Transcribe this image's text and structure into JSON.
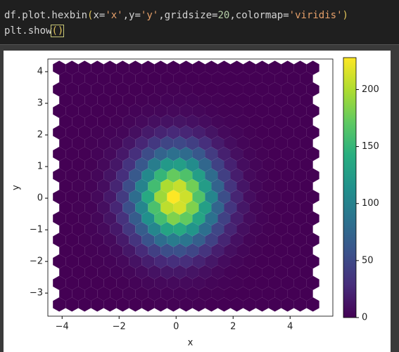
{
  "code": {
    "lines": [
      [
        {
          "text": "df.plot.hexbin",
          "color": "#d4d4d4"
        },
        {
          "text": "(",
          "color": "#e0c35a"
        },
        {
          "text": "x=",
          "color": "#d4d4d4"
        },
        {
          "text": "'x'",
          "color": "#e6a06a"
        },
        {
          "text": ",y=",
          "color": "#d4d4d4"
        },
        {
          "text": "'y'",
          "color": "#e6a06a"
        },
        {
          "text": ",gridsize=",
          "color": "#d4d4d4"
        },
        {
          "text": "20",
          "color": "#b5cea8"
        },
        {
          "text": ",colormap=",
          "color": "#d4d4d4"
        },
        {
          "text": "'viridis'",
          "color": "#e6a06a"
        },
        {
          "text": ")",
          "color": "#e0c35a"
        }
      ],
      [
        {
          "text": "plt.show",
          "color": "#d4d4d4"
        },
        {
          "text": "()",
          "color": "#e0c35a"
        }
      ]
    ]
  },
  "chart_data": {
    "type": "hexbin",
    "xlabel": "x",
    "ylabel": "y",
    "colormap": "viridis",
    "xlim": [
      -4.5,
      5.5
    ],
    "ylim": [
      -3.73,
      4.4
    ],
    "xticks": [
      {
        "value": -4,
        "label": "−4"
      },
      {
        "value": -2,
        "label": "−2"
      },
      0,
      2,
      4
    ],
    "yticks": [
      {
        "value": -3,
        "label": "−3"
      },
      {
        "value": -2,
        "label": "−2"
      },
      {
        "value": -1,
        "label": "−1"
      },
      0,
      1,
      2,
      3,
      4
    ],
    "extent": [
      -4.1,
      4.8,
      -3.36,
      4.12
    ],
    "gridsize": [
      20,
      11
    ],
    "counts_a": [
      [
        0,
        0,
        0,
        0,
        0,
        0,
        0,
        0,
        1,
        1,
        1,
        1,
        0,
        0,
        0,
        0,
        0,
        0,
        0,
        0,
        0
      ],
      [
        0,
        0,
        0,
        0,
        0,
        1,
        2,
        4,
        5,
        6,
        6,
        5,
        3,
        2,
        1,
        0,
        0,
        0,
        0,
        0,
        0
      ],
      [
        0,
        0,
        0,
        1,
        2,
        5,
        11,
        19,
        26,
        30,
        29,
        22,
        14,
        7,
        3,
        1,
        0,
        0,
        0,
        0,
        0
      ],
      [
        0,
        0,
        1,
        2,
        6,
        16,
        34,
        58,
        81,
        94,
        88,
        69,
        44,
        23,
        10,
        3,
        1,
        0,
        0,
        0,
        0
      ],
      [
        0,
        0,
        1,
        4,
        12,
        32,
        66,
        113,
        158,
        183,
        172,
        134,
        85,
        44,
        19,
        7,
        2,
        0,
        0,
        0,
        0
      ],
      [
        0,
        0,
        1,
        5,
        15,
        39,
        81,
        138,
        194,
        228,
        211,
        164,
        104,
        54,
        23,
        8,
        2,
        1,
        0,
        0,
        0
      ],
      [
        0,
        0,
        1,
        4,
        12,
        30,
        63,
        107,
        150,
        173,
        163,
        127,
        80,
        42,
        18,
        6,
        2,
        0,
        0,
        0,
        0
      ],
      [
        0,
        0,
        0,
        2,
        6,
        15,
        30,
        52,
        73,
        84,
        79,
        62,
        39,
        20,
        9,
        3,
        1,
        0,
        0,
        0,
        0
      ],
      [
        0,
        0,
        0,
        1,
        2,
        4,
        9,
        16,
        22,
        26,
        24,
        19,
        12,
        6,
        3,
        1,
        0,
        0,
        0,
        0,
        0
      ],
      [
        0,
        0,
        0,
        0,
        0,
        1,
        2,
        3,
        4,
        5,
        5,
        4,
        2,
        1,
        1,
        0,
        0,
        0,
        0,
        0,
        0
      ],
      [
        0,
        0,
        0,
        0,
        0,
        0,
        0,
        0,
        1,
        1,
        1,
        0,
        0,
        0,
        0,
        0,
        0,
        0,
        0,
        0,
        0
      ],
      [
        0,
        0,
        0,
        0,
        0,
        0,
        0,
        0,
        0,
        0,
        0,
        0,
        0,
        0,
        0,
        0,
        0,
        0,
        0,
        0,
        0
      ]
    ],
    "counts_b": [
      [
        0,
        0,
        0,
        0,
        0,
        1,
        1,
        2,
        2,
        2,
        2,
        1,
        1,
        0,
        0,
        0,
        0,
        0,
        0,
        0
      ],
      [
        0,
        0,
        0,
        1,
        2,
        4,
        7,
        11,
        14,
        14,
        12,
        9,
        5,
        2,
        1,
        0,
        0,
        0,
        0,
        0
      ],
      [
        0,
        0,
        1,
        2,
        6,
        14,
        27,
        42,
        54,
        56,
        48,
        34,
        19,
        9,
        4,
        1,
        0,
        0,
        0,
        0
      ],
      [
        0,
        0,
        2,
        6,
        15,
        36,
        67,
        104,
        132,
        138,
        118,
        83,
        48,
        23,
        9,
        3,
        1,
        0,
        0,
        0
      ],
      [
        0,
        1,
        2,
        9,
        24,
        55,
        104,
        161,
        205,
        213,
        183,
        128,
        74,
        35,
        14,
        4,
        1,
        0,
        0,
        0
      ],
      [
        0,
        1,
        2,
        8,
        23,
        53,
        101,
        157,
        199,
        208,
        178,
        125,
        72,
        34,
        13,
        4,
        1,
        0,
        0,
        0
      ],
      [
        0,
        0,
        1,
        5,
        14,
        33,
        62,
        96,
        122,
        127,
        109,
        76,
        44,
        21,
        8,
        3,
        1,
        0,
        0,
        0
      ],
      [
        0,
        0,
        1,
        2,
        5,
        13,
        24,
        37,
        47,
        49,
        42,
        30,
        17,
        8,
        3,
        1,
        0,
        0,
        0,
        0
      ],
      [
        0,
        0,
        0,
        0,
        1,
        3,
        6,
        9,
        11,
        12,
        10,
        7,
        4,
        2,
        1,
        0,
        0,
        0,
        0,
        0
      ],
      [
        0,
        0,
        0,
        0,
        0,
        0,
        1,
        1,
        2,
        2,
        2,
        1,
        1,
        0,
        0,
        0,
        0,
        0,
        0,
        0
      ],
      [
        0,
        0,
        0,
        0,
        0,
        0,
        0,
        0,
        0,
        0,
        0,
        0,
        0,
        0,
        0,
        0,
        0,
        0,
        0,
        0
      ]
    ],
    "colorbar": {
      "clim": [
        0,
        228
      ],
      "ticks": [
        0,
        50,
        100,
        150,
        200
      ]
    }
  }
}
